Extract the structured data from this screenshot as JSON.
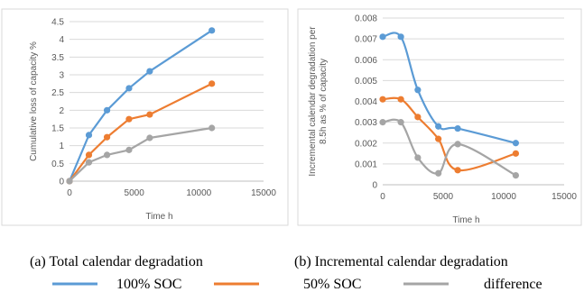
{
  "captions": {
    "a": "(a) Total calendar degradation",
    "b": "(b) Incremental calendar degradation"
  },
  "legend": [
    {
      "label": "100% SOC",
      "color": "#5B9BD5"
    },
    {
      "label": "50% SOC",
      "color": "#ED7D31"
    },
    {
      "label": "difference",
      "color": "#A5A5A5"
    }
  ],
  "chart_data": [
    {
      "type": "line",
      "title": "",
      "xlabel": "Time h",
      "ylabel": "Cumulative loss of capacity %",
      "xlim": [
        0,
        15000
      ],
      "ylim": [
        0,
        4.5
      ],
      "xticks": [
        "0",
        "5000",
        "10000",
        "15000"
      ],
      "yticks": [
        "0",
        "0.5",
        "1",
        "1.5",
        "2",
        "2.5",
        "3",
        "3.5",
        "4",
        "4.5"
      ],
      "smooth": false,
      "grid": "horizontal",
      "series": [
        {
          "name": "100% SOC",
          "color": "#5B9BD5",
          "x": [
            0,
            1500,
            2900,
            4600,
            6200,
            11000
          ],
          "y": [
            0,
            1.3,
            2.0,
            2.62,
            3.1,
            4.25
          ]
        },
        {
          "name": "50% SOC",
          "color": "#ED7D31",
          "x": [
            0,
            1500,
            2900,
            4600,
            6200,
            11000
          ],
          "y": [
            0,
            0.74,
            1.24,
            1.75,
            1.88,
            2.75
          ]
        },
        {
          "name": "difference",
          "color": "#A5A5A5",
          "x": [
            0,
            1500,
            2900,
            4600,
            6200,
            11000
          ],
          "y": [
            0,
            0.53,
            0.74,
            0.88,
            1.22,
            1.5
          ]
        }
      ]
    },
    {
      "type": "line",
      "title": "",
      "xlabel": "Time h",
      "ylabel": "Incremental calendar degradation per 8.5h as % of capacity",
      "xlim": [
        0,
        15000
      ],
      "ylim": [
        0,
        0.008
      ],
      "xticks": [
        "0",
        "5000",
        "10000",
        "15000"
      ],
      "yticks": [
        "0",
        "0.001",
        "0.002",
        "0.003",
        "0.004",
        "0.005",
        "0.006",
        "0.007",
        "0.008"
      ],
      "smooth": true,
      "grid": "horizontal",
      "series": [
        {
          "name": "100% SOC",
          "color": "#5B9BD5",
          "x": [
            0,
            1500,
            2900,
            4600,
            6200,
            11000
          ],
          "y": [
            0.0071,
            0.0071,
            0.00455,
            0.0028,
            0.0027,
            0.002
          ]
        },
        {
          "name": "50% SOC",
          "color": "#ED7D31",
          "x": [
            0,
            1500,
            2900,
            4600,
            6200,
            11000
          ],
          "y": [
            0.0041,
            0.0041,
            0.00325,
            0.0022,
            0.0007,
            0.0015
          ]
        },
        {
          "name": "difference",
          "color": "#A5A5A5",
          "x": [
            0,
            1500,
            2900,
            4600,
            6200,
            11000
          ],
          "y": [
            0.003,
            0.003,
            0.0013,
            0.00055,
            0.00195,
            0.00045
          ]
        }
      ]
    }
  ]
}
